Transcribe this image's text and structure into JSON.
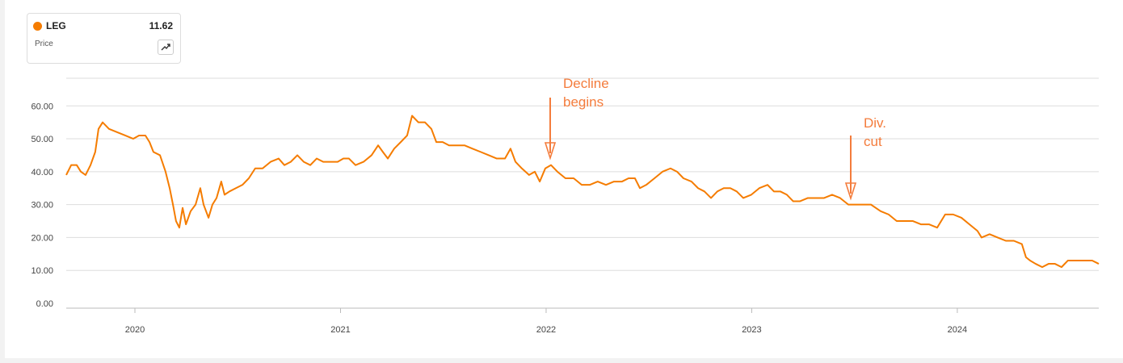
{
  "header": {
    "label": "Price",
    "last_price": "11.62"
  },
  "chart_data": {
    "type": "line",
    "xlim": [
      2019.666,
      2024.688
    ],
    "ylim": [
      0,
      68.4
    ],
    "xticks": [
      2020,
      2021,
      2022,
      2023,
      2024
    ],
    "yticks": [
      {
        "value": 0,
        "label": "0.00"
      },
      {
        "value": 10,
        "label": "10.00"
      },
      {
        "value": 20,
        "label": "20.00"
      },
      {
        "value": 30,
        "label": "30.00"
      },
      {
        "value": 40,
        "label": "40.00"
      },
      {
        "value": 50,
        "label": "50.00"
      },
      {
        "value": 60,
        "label": "60.00"
      }
    ],
    "grid": true,
    "annotations": [
      {
        "text": "Decline begins"
      },
      {
        "text": "Div. cut"
      }
    ],
    "x": [
      2019.666,
      2019.69,
      2019.717,
      2019.737,
      2019.76,
      2019.784,
      2019.807,
      2019.823,
      2019.843,
      2019.874,
      2019.914,
      2019.953,
      2019.992,
      2020.02,
      2020.051,
      2020.071,
      2020.09,
      2020.122,
      2020.149,
      2020.169,
      2020.185,
      2020.2,
      2020.216,
      2020.232,
      2020.248,
      2020.271,
      2020.295,
      2020.318,
      2020.334,
      2020.358,
      2020.377,
      2020.397,
      2020.42,
      2020.436,
      2020.46,
      2020.491,
      2020.523,
      2020.554,
      2020.585,
      2020.621,
      2020.66,
      2020.699,
      2020.727,
      2020.758,
      2020.79,
      2020.821,
      2020.853,
      2020.884,
      2020.916,
      2020.947,
      2020.986,
      2021.014,
      2021.041,
      2021.073,
      2021.112,
      2021.151,
      2021.183,
      2021.206,
      2021.23,
      2021.261,
      2021.293,
      2021.324,
      2021.348,
      2021.379,
      2021.411,
      2021.442,
      2021.466,
      2021.497,
      2021.528,
      2021.568,
      2021.603,
      2021.642,
      2021.682,
      2021.721,
      2021.76,
      2021.8,
      2021.827,
      2021.851,
      2021.882,
      2021.917,
      2021.945,
      2021.969,
      2021.996,
      2022.024,
      2022.055,
      2022.094,
      2022.134,
      2022.173,
      2022.212,
      2022.251,
      2022.291,
      2022.33,
      2022.369,
      2022.401,
      2022.432,
      2022.456,
      2022.487,
      2022.527,
      2022.566,
      2022.605,
      2022.637,
      2022.668,
      2022.707,
      2022.739,
      2022.77,
      2022.802,
      2022.833,
      2022.864,
      2022.896,
      2022.927,
      2022.959,
      2022.998,
      2023.037,
      2023.077,
      2023.108,
      2023.139,
      2023.171,
      2023.202,
      2023.234,
      2023.273,
      2023.312,
      2023.352,
      2023.391,
      2023.43,
      2023.47,
      2023.501,
      2023.54,
      2023.58,
      2023.627,
      2023.666,
      2023.705,
      2023.745,
      2023.784,
      2023.823,
      2023.862,
      2023.902,
      2023.941,
      2023.98,
      2024.02,
      2024.059,
      2024.098,
      2024.118,
      2024.157,
      2024.196,
      2024.236,
      2024.275,
      2024.314,
      2024.334,
      2024.354,
      2024.381,
      2024.413,
      2024.444,
      2024.475,
      2024.507,
      2024.538,
      2024.578,
      2024.617,
      2024.656,
      2024.688
    ],
    "series": [
      {
        "name": "LEG",
        "color": "#f57c00",
        "values": [
          39,
          42,
          42,
          40,
          39,
          42,
          46,
          53,
          55,
          53,
          52,
          51,
          50,
          51,
          51,
          49,
          46,
          45,
          40,
          35,
          30,
          25,
          23,
          29,
          24,
          28,
          30,
          35,
          30,
          26,
          30,
          32,
          37,
          33,
          34,
          35,
          36,
          38,
          41,
          41,
          43,
          44,
          42,
          43,
          45,
          43,
          42,
          44,
          43,
          43,
          43,
          44,
          44,
          42,
          43,
          45,
          48,
          46,
          44,
          47,
          49,
          51,
          57,
          55,
          55,
          53,
          49,
          49,
          48,
          48,
          48,
          47,
          46,
          45,
          44,
          44,
          47,
          43,
          41,
          39,
          40,
          37,
          41,
          42,
          40,
          38,
          38,
          36,
          36,
          37,
          36,
          37,
          37,
          38,
          38,
          35,
          36,
          38,
          40,
          41,
          40,
          38,
          37,
          35,
          34,
          32,
          34,
          35,
          35,
          34,
          32,
          33,
          35,
          36,
          34,
          34,
          33,
          31,
          31,
          32,
          32,
          32,
          33,
          32,
          30,
          30,
          30,
          30,
          28,
          27,
          25,
          25,
          25,
          24,
          24,
          23,
          27,
          27,
          26,
          24,
          22,
          20,
          21,
          20,
          19,
          19,
          18,
          14,
          13,
          12,
          11,
          12,
          12,
          11,
          13,
          13,
          13,
          13,
          12
        ]
      }
    ]
  }
}
